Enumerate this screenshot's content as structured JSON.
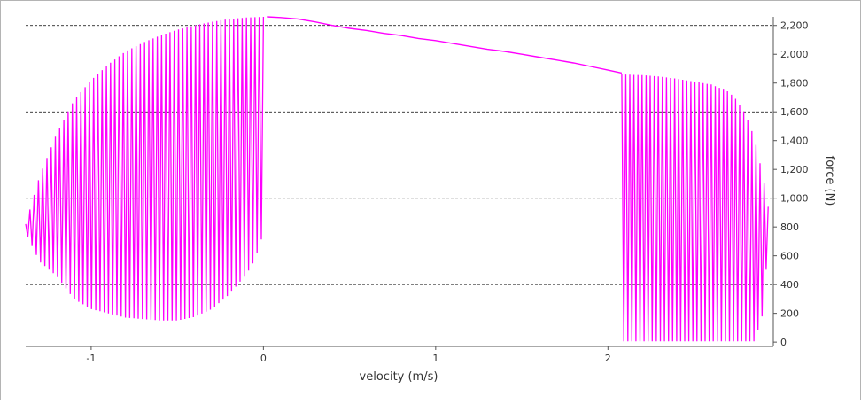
{
  "chart_data": {
    "type": "line",
    "xlabel": "velocity (m/s)",
    "ylabel": "force (N)",
    "xlim": [
      -1.38,
      2.96
    ],
    "ylim": [
      -30,
      2260
    ],
    "x_ticks": [
      -1,
      0,
      1,
      2
    ],
    "x_tick_labels": [
      "-1",
      "0",
      "1",
      "2"
    ],
    "y_ticks": [
      0,
      200,
      400,
      600,
      800,
      1000,
      1200,
      1400,
      1600,
      1800,
      2000,
      2200
    ],
    "y_tick_labels": [
      "0",
      "200",
      "400",
      "600",
      "800",
      "1,000",
      "1,200",
      "1,400",
      "1,600",
      "1,800",
      "2,000",
      "2,200"
    ],
    "gridlines_y": [
      400,
      1000,
      1600,
      2200
    ],
    "y_axis_side": "right",
    "legend": "none",
    "series": [
      {
        "color": "#ff00ff",
        "segments": [
          {
            "x": [
              0.02,
              0.1,
              0.2,
              0.3,
              0.4,
              0.5,
              0.6,
              0.7,
              0.8,
              0.9,
              1.0,
              1.1,
              1.2,
              1.3,
              1.4,
              1.5,
              1.6,
              1.7,
              1.8,
              1.9,
              2.0,
              2.08
            ],
            "y": [
              2260,
              2255,
              2245,
              2225,
              2200,
              2180,
              2165,
              2145,
              2130,
              2110,
              2095,
              2075,
              2055,
              2035,
              2020,
              2000,
              1980,
              1960,
              1940,
              1915,
              1890,
              1870
            ]
          }
        ],
        "oscillation_regions": [
          {
            "x_range": [
              -1.38,
              0.0
            ],
            "cycles": 56,
            "upper_envelope": {
              "x": [
                -1.38,
                -1.3,
                -1.2,
                -1.1,
                -1.0,
                -0.9,
                -0.8,
                -0.7,
                -0.6,
                -0.5,
                -0.4,
                -0.3,
                -0.2,
                -0.1,
                0.0
              ],
              "y": [
                820,
                1150,
                1450,
                1680,
                1820,
                1930,
                2020,
                2080,
                2130,
                2170,
                2200,
                2225,
                2245,
                2255,
                2260
              ]
            },
            "lower_envelope": {
              "x": [
                -1.38,
                -1.3,
                -1.2,
                -1.1,
                -1.0,
                -0.9,
                -0.8,
                -0.7,
                -0.6,
                -0.5,
                -0.4,
                -0.3,
                -0.2,
                -0.1,
                -0.05,
                0.0
              ],
              "y": [
                760,
                560,
                460,
                300,
                230,
                200,
                170,
                160,
                150,
                150,
                175,
                230,
                330,
                470,
                570,
                760
              ]
            }
          },
          {
            "x_range": [
              2.08,
              2.93
            ],
            "cycles": 36,
            "upper_envelope": {
              "x": [
                2.08,
                2.2,
                2.3,
                2.4,
                2.5,
                2.6,
                2.7,
                2.75,
                2.8,
                2.85,
                2.9,
                2.93
              ],
              "y": [
                1860,
                1855,
                1845,
                1830,
                1810,
                1790,
                1740,
                1680,
                1580,
                1420,
                1150,
                940
              ]
            },
            "lower_envelope": {
              "x": [
                2.08,
                2.3,
                2.5,
                2.6,
                2.8,
                2.85,
                2.9,
                2.93
              ],
              "y": [
                5,
                5,
                5,
                5,
                5,
                5,
                200,
                700
              ]
            }
          }
        ]
      }
    ]
  }
}
